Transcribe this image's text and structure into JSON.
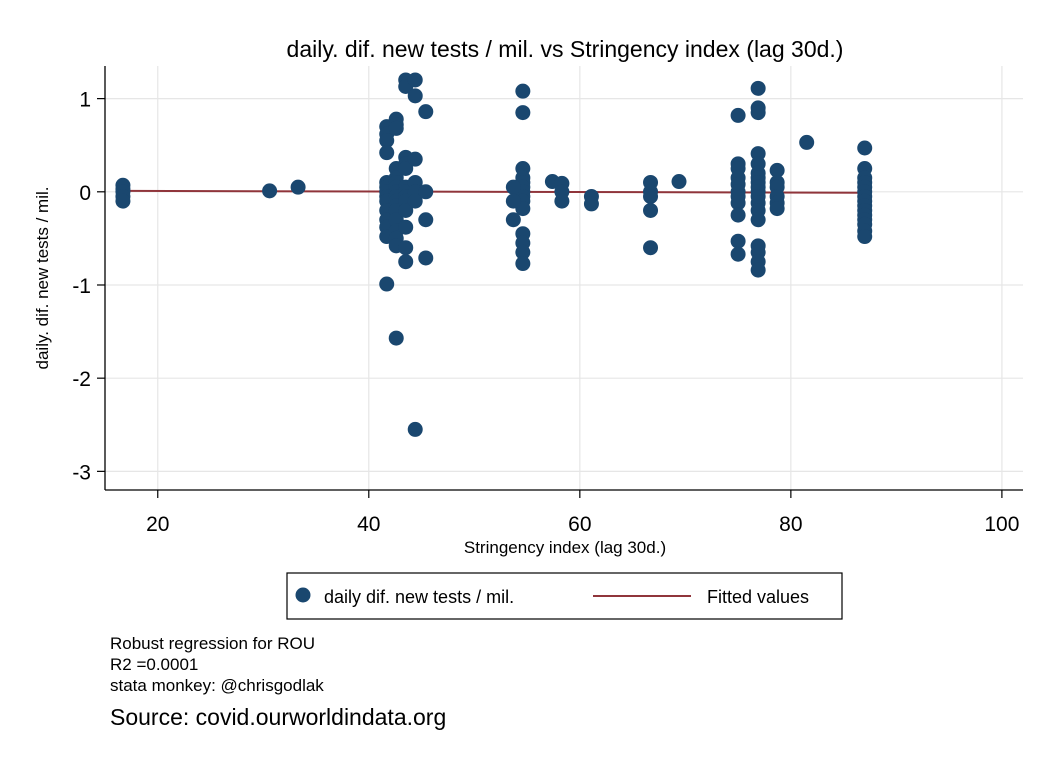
{
  "chart_data": {
    "type": "scatter",
    "title": "daily. dif. new tests / mil. vs Stringency index (lag 30d.)",
    "xlabel": "Stringency index (lag 30d.)",
    "ylabel": "daily. dif. new tests / mil.",
    "xlim": [
      15,
      102
    ],
    "ylim": [
      -3.2,
      1.35
    ],
    "xticks": [
      20,
      40,
      60,
      80,
      100
    ],
    "yticks": [
      1,
      0,
      -1,
      -2,
      -3
    ],
    "grid": true,
    "legend_position": "bottom",
    "series": [
      {
        "name": "daily dif. new tests / mil.",
        "color": "#1a476f",
        "points": [
          [
            16.7,
            0.07
          ],
          [
            16.7,
            0.03
          ],
          [
            16.7,
            0.0
          ],
          [
            16.7,
            -0.05
          ],
          [
            16.7,
            -0.1
          ],
          [
            30.6,
            0.01
          ],
          [
            33.3,
            0.05
          ],
          [
            41.7,
            0.7
          ],
          [
            41.7,
            0.62
          ],
          [
            41.7,
            0.55
          ],
          [
            41.7,
            0.42
          ],
          [
            41.7,
            0.1
          ],
          [
            41.7,
            0.05
          ],
          [
            41.7,
            0.0
          ],
          [
            41.7,
            -0.05
          ],
          [
            41.7,
            -0.1
          ],
          [
            41.7,
            -0.2
          ],
          [
            41.7,
            -0.3
          ],
          [
            41.7,
            -0.38
          ],
          [
            41.7,
            -0.48
          ],
          [
            41.7,
            -0.99
          ],
          [
            42.6,
            0.78
          ],
          [
            42.6,
            0.72
          ],
          [
            42.6,
            0.68
          ],
          [
            42.6,
            0.25
          ],
          [
            42.6,
            0.15
          ],
          [
            42.6,
            0.1
          ],
          [
            42.6,
            0.05
          ],
          [
            42.6,
            0.0
          ],
          [
            42.6,
            -0.05
          ],
          [
            42.6,
            -0.1
          ],
          [
            42.6,
            -0.15
          ],
          [
            42.6,
            -0.2
          ],
          [
            42.6,
            -0.3
          ],
          [
            42.6,
            -0.42
          ],
          [
            42.6,
            -0.5
          ],
          [
            42.6,
            -0.58
          ],
          [
            42.6,
            -1.57
          ],
          [
            43.5,
            1.2
          ],
          [
            43.5,
            1.13
          ],
          [
            43.5,
            0.37
          ],
          [
            43.5,
            0.3
          ],
          [
            43.5,
            0.25
          ],
          [
            43.5,
            0.05
          ],
          [
            43.5,
            0.0
          ],
          [
            43.5,
            -0.05
          ],
          [
            43.5,
            -0.1
          ],
          [
            43.5,
            -0.2
          ],
          [
            43.5,
            -0.38
          ],
          [
            43.5,
            -0.6
          ],
          [
            43.5,
            -0.75
          ],
          [
            44.4,
            1.2
          ],
          [
            44.4,
            1.03
          ],
          [
            44.4,
            0.35
          ],
          [
            44.4,
            0.1
          ],
          [
            44.4,
            0.0
          ],
          [
            44.4,
            -0.1
          ],
          [
            44.4,
            -2.55
          ],
          [
            45.4,
            0.86
          ],
          [
            45.4,
            0.0
          ],
          [
            45.4,
            -0.3
          ],
          [
            45.4,
            -0.71
          ],
          [
            54.6,
            1.08
          ],
          [
            54.6,
            0.85
          ],
          [
            54.6,
            0.25
          ],
          [
            54.6,
            0.15
          ],
          [
            54.6,
            0.1
          ],
          [
            54.6,
            0.05
          ],
          [
            54.6,
            0.0
          ],
          [
            54.6,
            -0.05
          ],
          [
            54.6,
            -0.1
          ],
          [
            54.6,
            -0.18
          ],
          [
            54.6,
            -0.45
          ],
          [
            54.6,
            -0.55
          ],
          [
            54.6,
            -0.65
          ],
          [
            54.6,
            -0.77
          ],
          [
            53.7,
            0.05
          ],
          [
            53.7,
            -0.1
          ],
          [
            53.7,
            -0.3
          ],
          [
            57.4,
            0.11
          ],
          [
            58.3,
            0.09
          ],
          [
            58.3,
            0.0
          ],
          [
            58.3,
            -0.1
          ],
          [
            61.1,
            -0.05
          ],
          [
            61.1,
            -0.13
          ],
          [
            66.7,
            0.1
          ],
          [
            66.7,
            0.0
          ],
          [
            66.7,
            -0.05
          ],
          [
            66.7,
            -0.2
          ],
          [
            66.7,
            -0.6
          ],
          [
            69.4,
            0.11
          ],
          [
            75.0,
            0.82
          ],
          [
            75.0,
            0.3
          ],
          [
            75.0,
            0.25
          ],
          [
            75.0,
            0.15
          ],
          [
            75.0,
            0.08
          ],
          [
            75.0,
            0.0
          ],
          [
            75.0,
            -0.05
          ],
          [
            75.0,
            -0.12
          ],
          [
            75.0,
            -0.25
          ],
          [
            75.0,
            -0.53
          ],
          [
            75.0,
            -0.67
          ],
          [
            76.9,
            1.11
          ],
          [
            76.9,
            0.9
          ],
          [
            76.9,
            0.85
          ],
          [
            76.9,
            0.41
          ],
          [
            76.9,
            0.3
          ],
          [
            76.9,
            0.2
          ],
          [
            76.9,
            0.15
          ],
          [
            76.9,
            0.1
          ],
          [
            76.9,
            0.05
          ],
          [
            76.9,
            0.0
          ],
          [
            76.9,
            -0.05
          ],
          [
            76.9,
            -0.12
          ],
          [
            76.9,
            -0.2
          ],
          [
            76.9,
            -0.3
          ],
          [
            76.9,
            -0.58
          ],
          [
            76.9,
            -0.65
          ],
          [
            76.9,
            -0.75
          ],
          [
            76.9,
            -0.84
          ],
          [
            78.7,
            0.23
          ],
          [
            78.7,
            0.1
          ],
          [
            78.7,
            0.05
          ],
          [
            78.7,
            -0.05
          ],
          [
            78.7,
            -0.12
          ],
          [
            78.7,
            -0.18
          ],
          [
            81.5,
            0.53
          ],
          [
            87.0,
            0.47
          ],
          [
            87.0,
            0.25
          ],
          [
            87.0,
            0.15
          ],
          [
            87.0,
            0.1
          ],
          [
            87.0,
            0.05
          ],
          [
            87.0,
            0.0
          ],
          [
            87.0,
            -0.05
          ],
          [
            87.0,
            -0.1
          ],
          [
            87.0,
            -0.15
          ],
          [
            87.0,
            -0.2
          ],
          [
            87.0,
            -0.25
          ],
          [
            87.0,
            -0.3
          ],
          [
            87.0,
            -0.35
          ],
          [
            87.0,
            -0.42
          ],
          [
            87.0,
            -0.48
          ]
        ]
      },
      {
        "name": "Fitted values",
        "type": "line",
        "color": "#90353b",
        "points": [
          [
            16.7,
            0.01
          ],
          [
            87.0,
            -0.01
          ]
        ]
      }
    ]
  },
  "notes": {
    "line1": "Robust regression for ROU",
    "line2": "R2 =0.0001",
    "line3": "stata monkey: @chrisgodlak",
    "source": "Source: covid.ourworldindata.org"
  }
}
